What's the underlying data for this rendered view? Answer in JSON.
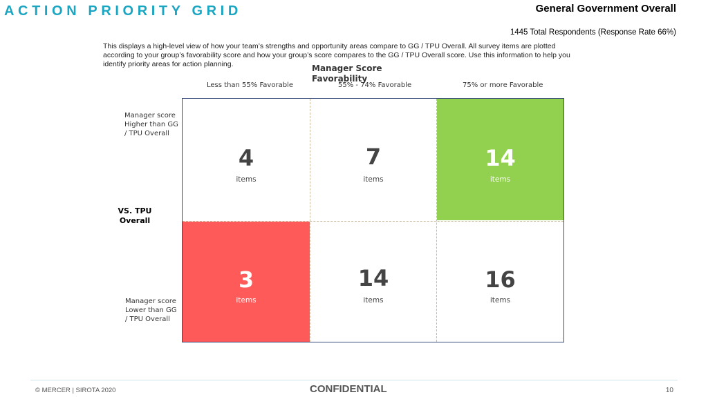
{
  "header": {
    "title": "ACTION PRIORITY GRID",
    "org_name": "General Government Overall",
    "respondents": "1445 Total Respondents (Response Rate  66%)"
  },
  "description": "This displays a high-level view of how your team’s strengths and opportunity areas compare to GG / TPU Overall. All survey items are plotted according to your group’s favorability score and how your group’s score compares to the GG / TPU Overall score. Use this information to help you identify priority areas for action planning.",
  "grid": {
    "favorability_title": "Manager Score Favorability",
    "columns": [
      "Less than 55% Favorable",
      "55% - 74% Favorable",
      "75% or more Favorable"
    ],
    "row_labels": {
      "higher": "Manager score Higher than GG / TPU Overall",
      "vs": "VS.  TPU Overall",
      "lower": "Manager score Lower than GG / TPU Overall"
    },
    "item_label": "items",
    "cells": {
      "top_left": "4",
      "top_mid": "7",
      "top_right": "14",
      "bottom_left": "3",
      "bottom_mid": "14",
      "bottom_right": "16"
    },
    "colors": {
      "top_right_fill": "#92d050",
      "bottom_left_fill": "#ff5a5a",
      "border": "#34497a"
    }
  },
  "footer": {
    "copyright": "© MERCER | SIROTA 2020",
    "confidential": "CONFIDENTIAL",
    "page_number": "10"
  }
}
